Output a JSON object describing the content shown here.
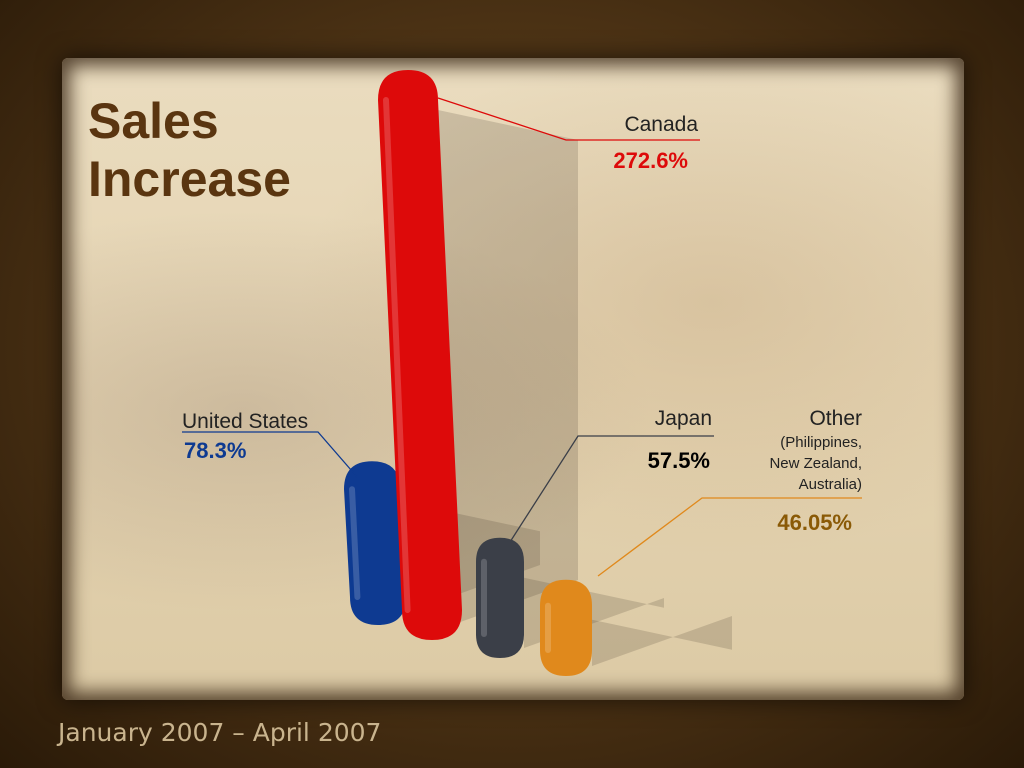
{
  "slide": {
    "title": "Sales\nIncrease",
    "date_range": "January 2007 – April 2007"
  },
  "chart_data": {
    "type": "bar",
    "title": "Sales Increase",
    "categories": [
      "United States",
      "Canada",
      "Japan",
      "Other"
    ],
    "values": [
      78.3,
      272.6,
      57.5,
      46.05
    ],
    "value_labels": [
      "78.3%",
      "272.6%",
      "57.5%",
      "46.05%"
    ],
    "sublabels": [
      "",
      "",
      "",
      "(Philippines,\nNew Zealand,\nAustralia)"
    ],
    "colors": [
      "#0e3a91",
      "#dd0a0a",
      "#3b3f48",
      "#e0891c"
    ],
    "label_colors": [
      "#0e3a91",
      "#dd0a0a",
      "#000000",
      "#8a5a06"
    ],
    "legend": "none",
    "grid": false
  }
}
